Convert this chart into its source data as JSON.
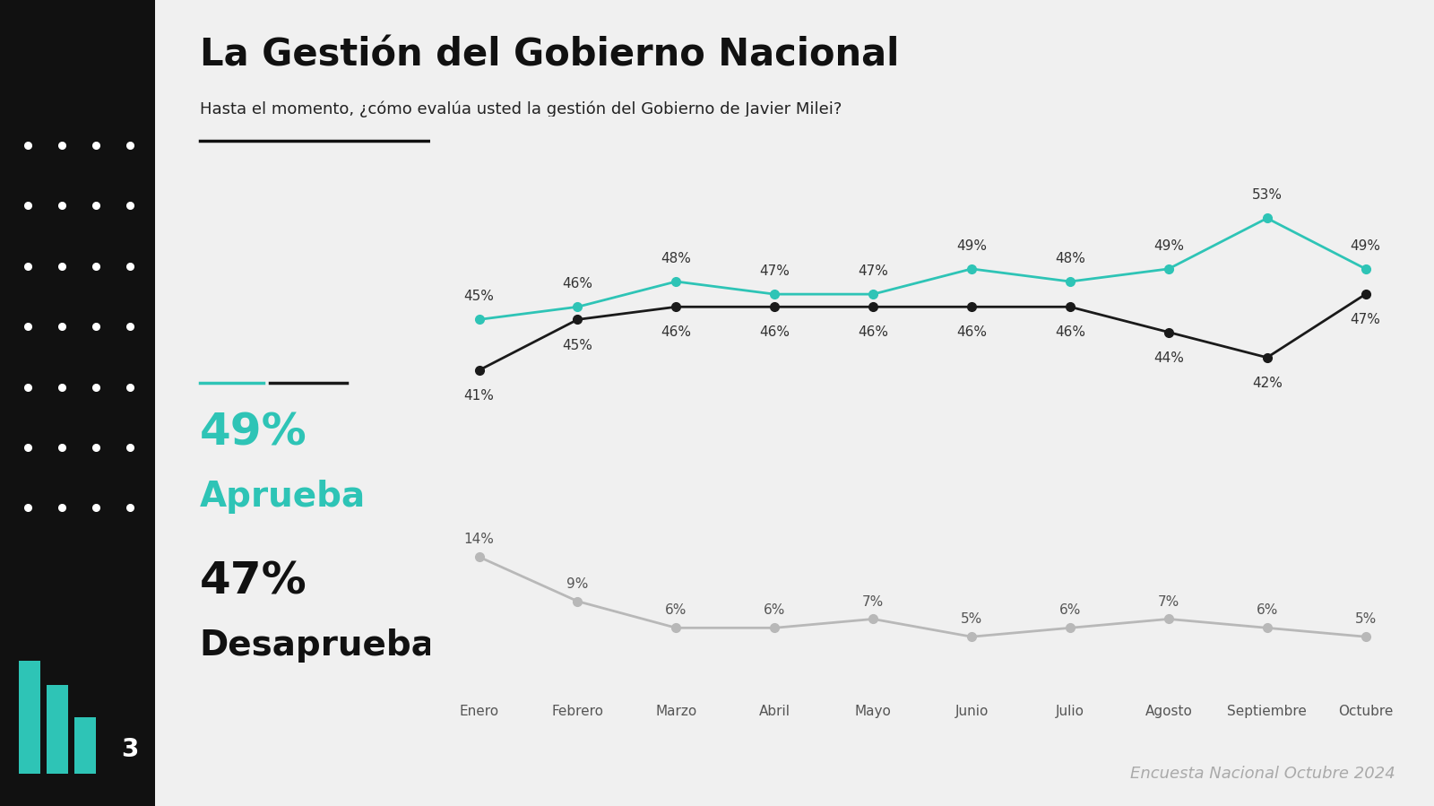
{
  "title": "La Gestión del Gobierno Nacional",
  "subtitle": "Hasta el momento, ¿cómo evalúa usted la gestión del Gobierno de Javier Milei?",
  "months": [
    "Enero",
    "Febrero",
    "Marzo",
    "Abril",
    "Mayo",
    "Junio",
    "Julio",
    "Agosto",
    "Septiembre",
    "Octubre"
  ],
  "aprueba_values": [
    45,
    46,
    48,
    47,
    47,
    49,
    48,
    49,
    53,
    49
  ],
  "desaprueba_values": [
    41,
    45,
    46,
    46,
    46,
    46,
    46,
    44,
    42,
    47
  ],
  "ns_nc_values": [
    14,
    9,
    6,
    6,
    7,
    5,
    6,
    7,
    6,
    5
  ],
  "aprueba_color": "#2ec4b6",
  "desaprueba_color": "#1a1a1a",
  "ns_nc_color": "#b8b8b8",
  "bg_color": "#f0f0f0",
  "left_panel_color": "#111111",
  "aprueba_pct": "49%",
  "desaprueba_pct": "47%",
  "aprueba_label": "Aprueba",
  "desaprueba_label": "Desaprueba",
  "footer": "Encuesta Nacional Octubre 2024",
  "title_fontsize": 30,
  "subtitle_fontsize": 13,
  "label_big_fontsize": 36,
  "label_med_fontsize": 28,
  "data_label_fontsize": 11,
  "month_fontsize": 11
}
